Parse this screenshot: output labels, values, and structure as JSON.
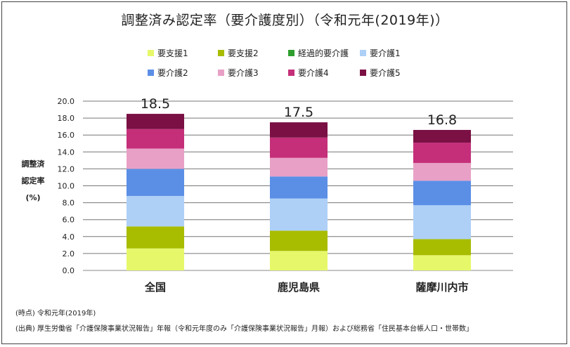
{
  "chart_data": {
    "type": "bar",
    "stacked": true,
    "title": "調整済み認定率（要介護度別）（令和元年(2019年)）",
    "ylabel": [
      "調整済",
      "認定率",
      "(%)"
    ],
    "ylim": [
      0,
      20
    ],
    "yticks": [
      "0.0",
      "2.0",
      "4.0",
      "6.0",
      "8.0",
      "10.0",
      "12.0",
      "14.0",
      "16.0",
      "18.0",
      "20.0"
    ],
    "grid": true,
    "legend_position": "top",
    "categories": [
      "全国",
      "鹿児島県",
      "薩摩川内市"
    ],
    "totals": [
      "18.5",
      "17.5",
      "16.8"
    ],
    "series": [
      {
        "name": "要支援1",
        "color": "#e6f86a",
        "values": [
          2.6,
          2.3,
          1.8
        ]
      },
      {
        "name": "要支援2",
        "color": "#a8bc00",
        "values": [
          2.6,
          2.4,
          1.9
        ]
      },
      {
        "name": "経過的要介護",
        "color": "#2e9e2e",
        "values": [
          0.0,
          0.0,
          0.0
        ]
      },
      {
        "name": "要介護1",
        "color": "#aed0f7",
        "values": [
          3.6,
          3.8,
          4.0
        ]
      },
      {
        "name": "要介護2",
        "color": "#5b8fe6",
        "values": [
          3.2,
          2.6,
          2.9
        ]
      },
      {
        "name": "要介護3",
        "color": "#e8a0c6",
        "values": [
          2.4,
          2.2,
          2.1
        ]
      },
      {
        "name": "要介護4",
        "color": "#c52f79",
        "values": [
          2.3,
          2.4,
          2.4
        ]
      },
      {
        "name": "要介護5",
        "color": "#7a1044",
        "values": [
          1.8,
          1.8,
          1.5
        ]
      }
    ]
  },
  "notes": {
    "time_point": "(時点)  令和元年(2019年)",
    "source": "(出典)  厚生労働省「介護保険事業状況報告」年報（令和元年度のみ「介護保険事業状況報告」月報）および総務省「住民基本台帳人口・世帯数」"
  }
}
